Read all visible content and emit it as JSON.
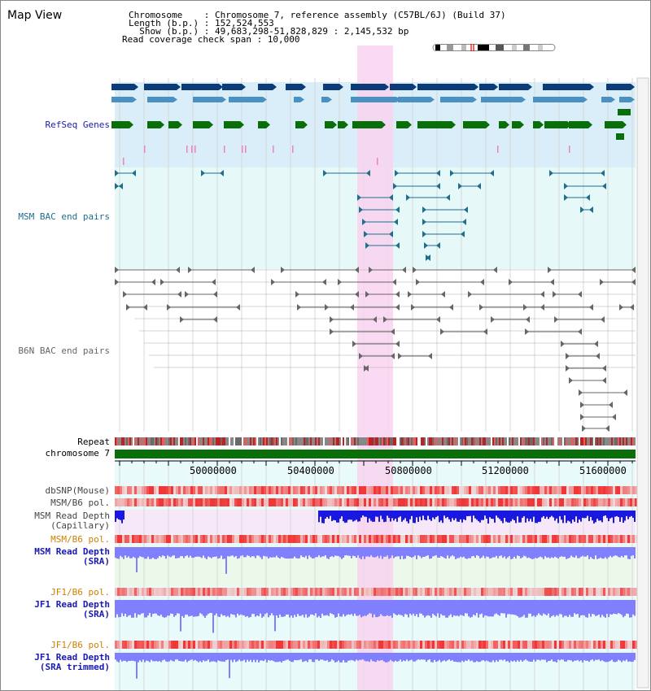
{
  "title": "Map View",
  "info": {
    "chromosome_line": "Chromosome    : Chromosome 7, reference assembly (C57BL/6J) (Build 37)",
    "length_line": "Length (b.p.) : 152,524,553",
    "show_line": "  Show (b.p.) : 49,683,298-51,828,829 : 2,145,532 bp",
    "coverage_line": "Read coverage check span : 10,000"
  },
  "tracks": {
    "refseq": "RefSeq Genes",
    "msm_bac": "MSM BAC end pairs",
    "b6n_bac": "B6N BAC end pairs",
    "repeat": "Repeat",
    "chromosome": "chromosome 7",
    "dbsnp": "dbSNP(Mouse)",
    "msm_b6_pol_1": "MSM/B6 pol.",
    "msm_read_depth_cap": "MSM Read Depth\n(Capillary)",
    "msm_b6_pol_2": "MSM/B6 pol.",
    "msm_read_depth_sra": "MSM Read Depth\n(SRA)",
    "jf1_b6_pol_1": "JF1/B6 pol.",
    "jf1_read_depth_sra": "JF1 Read Depth\n(SRA)",
    "jf1_b6_pol_2": "JF1/B6 pol.",
    "jf1_read_depth_trim": "JF1 Read Depth\n(SRA trimmed)"
  },
  "axis": {
    "ticks": [
      "50000000",
      "50400000",
      "50800000",
      "51200000",
      "51600000"
    ]
  },
  "colors": {
    "refseq_dark": "#0b3c78",
    "refseq_mid": "#4a90c0",
    "refseq_green": "#0a6e0a",
    "msm_bac": "#1e6e8c",
    "b6n_bac": "#666666",
    "highlight": "#f8d4f0",
    "read_depth": "#8080ff",
    "pol_red": "#e03030"
  }
}
